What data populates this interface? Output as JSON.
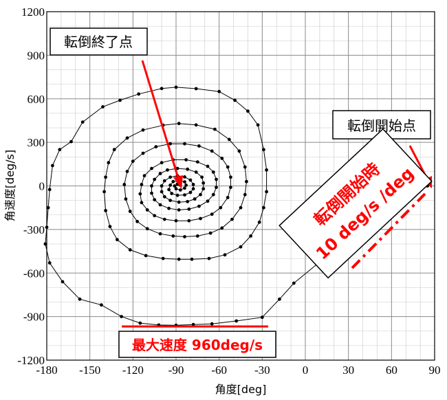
{
  "chart_data": {
    "type": "scatter",
    "xlabel": "角度[deg]",
    "ylabel": "角速度[deg/s]",
    "xlim": [
      -180,
      90
    ],
    "ylim": [
      -1200,
      1200
    ],
    "xticks": [
      -180,
      -150,
      -120,
      -90,
      -60,
      -30,
      0,
      30,
      60,
      90
    ],
    "yticks": [
      -1200,
      -900,
      -600,
      -300,
      0,
      300,
      600,
      900,
      1200
    ],
    "grid": true,
    "spiral_center": [
      -88,
      0
    ],
    "series": [
      {
        "points": [
          [
            85,
            0
          ],
          [
            72,
            -60
          ],
          [
            58,
            -150
          ],
          [
            46,
            -240
          ],
          [
            35,
            -330
          ],
          [
            22,
            -440
          ],
          [
            8,
            -540
          ],
          [
            -8,
            -670
          ],
          [
            -18,
            -780
          ],
          [
            -30,
            -905
          ],
          [
            -48,
            -930
          ],
          [
            -65,
            -950
          ],
          [
            -78,
            -955
          ],
          [
            -90,
            -960
          ],
          [
            -102,
            -958
          ],
          [
            -115,
            -945
          ],
          [
            -128,
            -900
          ],
          [
            -142,
            -820
          ],
          [
            -157,
            -780
          ],
          [
            -169,
            -660
          ],
          [
            -178,
            -530
          ],
          [
            -181,
            -400
          ],
          [
            -180,
            -285
          ],
          [
            -179,
            -150
          ],
          [
            -178,
            -25
          ],
          [
            -176,
            140
          ],
          [
            -171,
            250
          ],
          [
            -163,
            305
          ],
          [
            -155,
            440
          ],
          [
            -141,
            545
          ],
          [
            -129,
            590
          ],
          [
            -116,
            633
          ],
          [
            -100,
            671
          ],
          [
            -90,
            680
          ],
          [
            -76,
            670
          ],
          [
            -60,
            650
          ],
          [
            -49,
            590
          ],
          [
            -40,
            515
          ],
          [
            -33,
            420
          ],
          [
            -29,
            250
          ],
          [
            -27,
            110
          ],
          [
            -27,
            -40
          ],
          [
            -29,
            -150
          ],
          [
            -32,
            -250
          ],
          [
            -38,
            -345
          ],
          [
            -45,
            -420
          ],
          [
            -56,
            -475
          ],
          [
            -67,
            -500
          ],
          [
            -79,
            -505
          ],
          [
            -88,
            -505
          ],
          [
            -99,
            -500
          ],
          [
            -111,
            -480
          ],
          [
            -122,
            -440
          ],
          [
            -131,
            -370
          ],
          [
            -136,
            -280
          ],
          [
            -139,
            -170
          ],
          [
            -140,
            -40
          ],
          [
            -139,
            60
          ],
          [
            -137,
            160
          ],
          [
            -133,
            250
          ],
          [
            -124,
            330
          ],
          [
            -113,
            385
          ],
          [
            -99,
            418
          ],
          [
            -88,
            430
          ],
          [
            -76,
            420
          ],
          [
            -63,
            390
          ],
          [
            -53,
            320
          ],
          [
            -46,
            240
          ],
          [
            -42,
            130
          ],
          [
            -41,
            30
          ],
          [
            -42,
            -60
          ],
          [
            -45,
            -150
          ],
          [
            -51,
            -230
          ],
          [
            -58,
            -290
          ],
          [
            -66,
            -325
          ],
          [
            -75,
            -345
          ],
          [
            -84,
            -350
          ],
          [
            -92,
            -345
          ],
          [
            -101,
            -330
          ],
          [
            -110,
            -295
          ],
          [
            -117,
            -245
          ],
          [
            -122,
            -175
          ],
          [
            -125,
            -90
          ],
          [
            -126,
            10
          ],
          [
            -124,
            100
          ],
          [
            -120,
            170
          ],
          [
            -113,
            225
          ],
          [
            -104,
            270
          ],
          [
            -94,
            290
          ],
          [
            -84,
            290
          ],
          [
            -74,
            275
          ],
          [
            -65,
            240
          ],
          [
            -58,
            190
          ],
          [
            -54,
            130
          ],
          [
            -52,
            60
          ],
          [
            -52,
            -10
          ],
          [
            -54,
            -80
          ],
          [
            -59,
            -150
          ],
          [
            -65,
            -195
          ],
          [
            -73,
            -225
          ],
          [
            -81,
            -240
          ],
          [
            -90,
            -240
          ],
          [
            -98,
            -230
          ],
          [
            -105,
            -205
          ],
          [
            -110,
            -165
          ],
          [
            -114,
            -115
          ],
          [
            -115,
            -55
          ],
          [
            -114,
            10
          ],
          [
            -112,
            70
          ],
          [
            -107,
            120
          ],
          [
            -100,
            160
          ],
          [
            -92,
            180
          ],
          [
            -83,
            180
          ],
          [
            -75,
            165
          ],
          [
            -68,
            135
          ],
          [
            -64,
            95
          ],
          [
            -62,
            45
          ],
          [
            -62,
            -10
          ],
          [
            -64,
            -60
          ],
          [
            -68,
            -105
          ],
          [
            -74,
            -140
          ],
          [
            -81,
            -160
          ],
          [
            -88,
            -165
          ],
          [
            -95,
            -155
          ],
          [
            -101,
            -130
          ],
          [
            -105,
            -95
          ],
          [
            -107,
            -50
          ],
          [
            -107,
            0
          ],
          [
            -105,
            45
          ],
          [
            -101,
            85
          ],
          [
            -96,
            110
          ],
          [
            -89,
            120
          ],
          [
            -82,
            115
          ],
          [
            -76,
            95
          ],
          [
            -72,
            60
          ],
          [
            -71,
            20
          ],
          [
            -71,
            -20
          ],
          [
            -73,
            -60
          ],
          [
            -77,
            -90
          ],
          [
            -82,
            -108
          ],
          [
            -88,
            -112
          ],
          [
            -94,
            -100
          ],
          [
            -98,
            -75
          ],
          [
            -100,
            -40
          ],
          [
            -100,
            0
          ],
          [
            -98,
            35
          ],
          [
            -94,
            60
          ],
          [
            -89,
            70
          ],
          [
            -84,
            62
          ],
          [
            -80,
            40
          ],
          [
            -78,
            10
          ],
          [
            -78,
            -20
          ],
          [
            -80,
            -45
          ],
          [
            -84,
            -62
          ],
          [
            -89,
            -65
          ],
          [
            -93,
            -52
          ],
          [
            -95,
            -25
          ],
          [
            -94,
            5
          ],
          [
            -92,
            30
          ],
          [
            -88,
            38
          ],
          [
            -84,
            28
          ],
          [
            -83,
            5
          ],
          [
            -84,
            -15
          ],
          [
            -87,
            -28
          ],
          [
            -90,
            -20
          ],
          [
            -91,
            0
          ],
          [
            -89,
            12
          ],
          [
            -87,
            5
          ]
        ]
      }
    ],
    "annotations": [
      {
        "text": "転倒終了点",
        "target": [
          -88,
          0
        ]
      },
      {
        "text": "転倒開始点",
        "target": [
          86,
          0
        ]
      },
      {
        "text": "最大速度 960deg/s",
        "at_y": -960
      },
      {
        "text": "転倒開始時",
        "line2": "10 deg/s /deg"
      }
    ]
  }
}
